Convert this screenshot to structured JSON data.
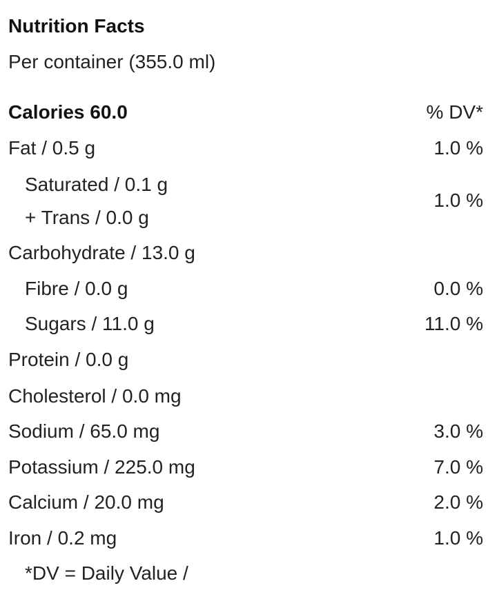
{
  "header": {
    "title": "Nutrition Facts",
    "subtitle": "Per container (355.0 ml)"
  },
  "calories": {
    "label": "Calories 60.0",
    "dv_header": "% DV*"
  },
  "rows": [
    {
      "label": "Fat / 0.5 g",
      "dv": "1.0 %"
    },
    {
      "labels": [
        "Saturated / 0.1 g",
        "+ Trans / 0.0 g"
      ],
      "dv": "1.0 %"
    },
    {
      "label": "Carbohydrate / 13.0 g"
    },
    {
      "label": "Fibre / 0.0 g",
      "dv": "0.0 %"
    },
    {
      "label": "Sugars / 11.0 g",
      "dv": "11.0 %"
    },
    {
      "label": "Protein / 0.0 g"
    },
    {
      "label": "Cholesterol / 0.0 mg"
    },
    {
      "label": "Sodium / 65.0 mg",
      "dv": "3.0 %"
    },
    {
      "label": "Potassium / 225.0 mg",
      "dv": "7.0 %"
    },
    {
      "label": "Calcium / 20.0 mg",
      "dv": "2.0 %"
    },
    {
      "label": "Iron / 0.2 mg",
      "dv": "1.0 %"
    }
  ],
  "footnote": "*DV = Daily Value /"
}
